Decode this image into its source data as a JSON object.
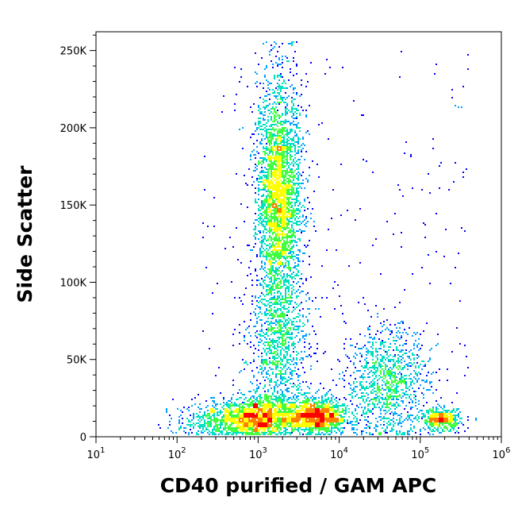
{
  "chart_data": {
    "type": "scatter",
    "subtype": "flow-cytometry density dot plot",
    "xlabel": "CD40 purified / GAM APC",
    "ylabel": "Side Scatter",
    "x_scale": "log",
    "xlim": [
      10,
      1000000
    ],
    "ylim": [
      0,
      262144
    ],
    "x_ticks": [
      {
        "base": "10",
        "exp": "1"
      },
      {
        "base": "10",
        "exp": "2"
      },
      {
        "base": "10",
        "exp": "3"
      },
      {
        "base": "10",
        "exp": "4"
      },
      {
        "base": "10",
        "exp": "5"
      },
      {
        "base": "10",
        "exp": "6"
      }
    ],
    "y_ticks": [
      {
        "value": 0,
        "label": "0"
      },
      {
        "value": 50000,
        "label": "50K"
      },
      {
        "value": 100000,
        "label": "100K"
      },
      {
        "value": 150000,
        "label": "150K"
      },
      {
        "value": 200000,
        "label": "200K"
      },
      {
        "value": 250000,
        "label": "250K"
      }
    ],
    "grid": false,
    "density_colors": [
      "#0000ff",
      "#00a0ff",
      "#00e0c0",
      "#40ff40",
      "#ffff00",
      "#ff8000",
      "#ff0000"
    ],
    "populations": [
      {
        "center_x": 1800,
        "center_y": 155000,
        "x_spread_decades": 0.14,
        "y_spread": 38000,
        "weight": 0.36
      },
      {
        "center_x": 1000,
        "center_y": 12000,
        "x_spread_decades": 0.22,
        "y_spread": 7000,
        "weight": 0.16
      },
      {
        "center_x": 5000,
        "center_y": 13000,
        "x_spread_decades": 0.2,
        "y_spread": 6000,
        "weight": 0.16
      },
      {
        "center_x": 40000,
        "center_y": 35000,
        "x_spread_decades": 0.25,
        "y_spread": 18000,
        "weight": 0.12
      },
      {
        "center_x": 180000,
        "center_y": 11000,
        "x_spread_decades": 0.12,
        "y_spread": 3500,
        "weight": 0.05
      },
      {
        "center_x": 1800,
        "center_y": 60000,
        "x_spread_decades": 0.18,
        "y_spread": 25000,
        "weight": 0.1
      },
      {
        "center_x": 300,
        "center_y": 10000,
        "x_spread_decades": 0.25,
        "y_spread": 6000,
        "weight": 0.05
      }
    ]
  }
}
